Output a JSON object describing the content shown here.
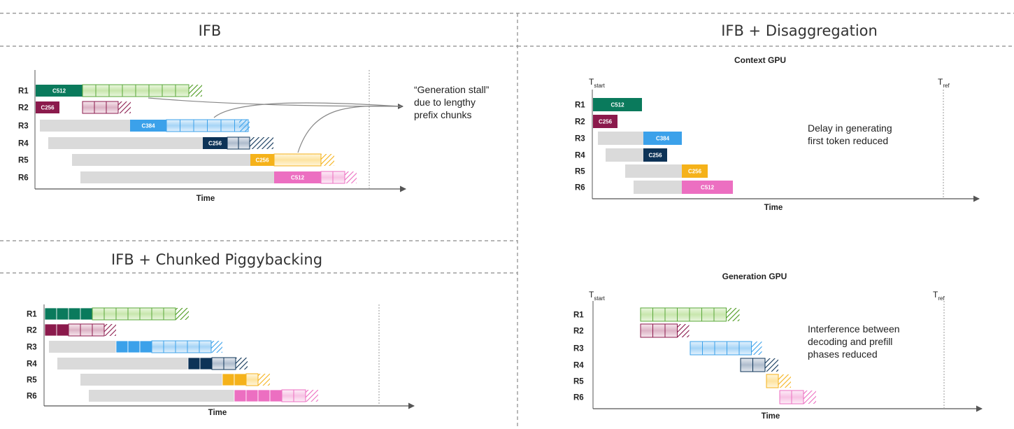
{
  "colors": {
    "green": "#0a7a5c",
    "maroon": "#8b1a4c",
    "blue": "#3ba1ea",
    "navy": "#0d3357",
    "yellow": "#f5b21a",
    "pink": "#ec6fc1",
    "wait": "#dadada",
    "divider": "#8a8a8a",
    "axis": "#555555"
  },
  "sections": {
    "ifb": {
      "title": "IFB"
    },
    "chunked": {
      "title": "IFB + Chunked Piggybacking"
    },
    "disagg": {
      "title": "IFB + Disaggregation",
      "context_title": "Context GPU",
      "generation_title": "Generation GPU"
    }
  },
  "rows": [
    "R1",
    "R2",
    "R3",
    "R4",
    "R5",
    "R6"
  ],
  "axis": {
    "time_label": "Time",
    "t_start": "T",
    "t_start_sub": "start",
    "t_ref": "T",
    "t_ref_sub": "ref"
  },
  "chips": {
    "r1": "C512",
    "r2": "C256",
    "r3": "C384",
    "r4": "C256",
    "r5": "C256",
    "r6": "C512"
  },
  "annotations": {
    "stall": [
      "“Generation stall”",
      "due to lengthy",
      "prefix chunks"
    ],
    "delay": [
      "Delay in generating",
      "first token reduced"
    ],
    "interference": [
      "Interference between",
      "decoding and prefill",
      "phases reduced"
    ]
  }
}
